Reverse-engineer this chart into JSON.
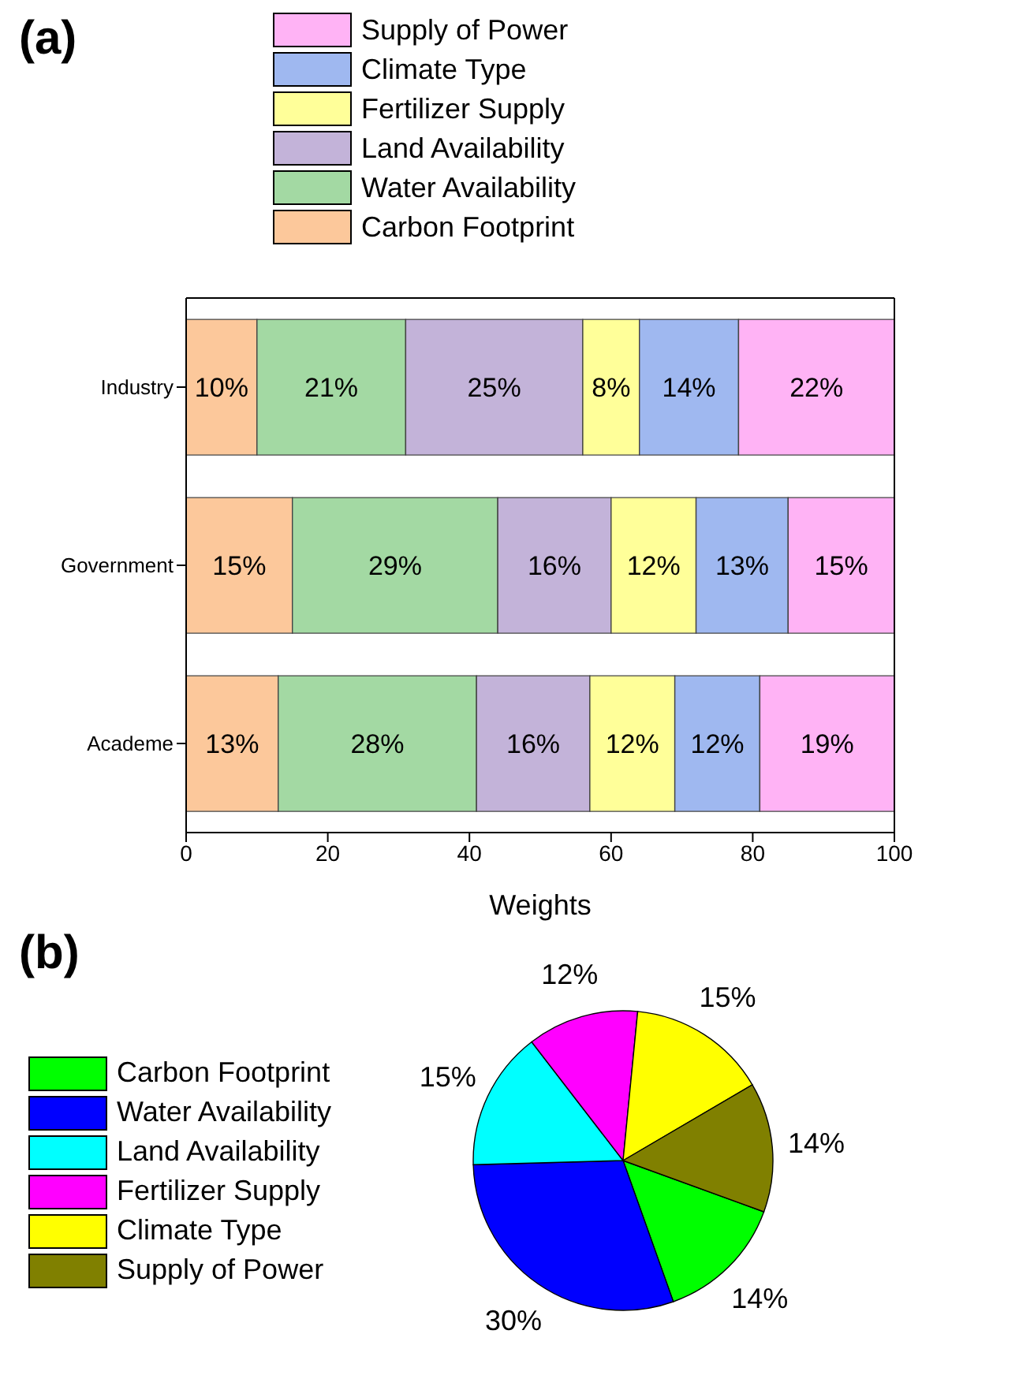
{
  "chart_data": [
    {
      "type": "bar",
      "orientation": "horizontal",
      "stacked": true,
      "annotations": [
        "(a)"
      ],
      "categories": [
        "Industry",
        "Government",
        "Academe"
      ],
      "xlabel": "Weights",
      "xlim": [
        0,
        100
      ],
      "xticks": [
        0,
        20,
        40,
        60,
        80,
        100
      ],
      "legend": "top",
      "series": [
        {
          "name": "Carbon Footprint",
          "color": "#fcc89b",
          "values": [
            10,
            15,
            13
          ],
          "value_labels": [
            "10%",
            "15%",
            "13%"
          ]
        },
        {
          "name": "Water Availability",
          "color": "#a3d9a3",
          "values": [
            21,
            29,
            28
          ],
          "value_labels": [
            "21%",
            "29%",
            "28%"
          ]
        },
        {
          "name": "Land Availability",
          "color": "#c3b3d9",
          "values": [
            25,
            16,
            16
          ],
          "value_labels": [
            "25%",
            "16%",
            "16%"
          ]
        },
        {
          "name": "Fertilizer Supply",
          "color": "#ffff99",
          "values": [
            8,
            12,
            12
          ],
          "value_labels": [
            "8%",
            "12%",
            "12%"
          ]
        },
        {
          "name": "Climate Type",
          "color": "#9fb8f0",
          "values": [
            14,
            13,
            12
          ],
          "value_labels": [
            "14%",
            "13%",
            "12%"
          ]
        },
        {
          "name": "Supply of Power",
          "color": "#ffb3f5",
          "values": [
            22,
            15,
            19
          ],
          "value_labels": [
            "22%",
            "15%",
            "19%"
          ]
        }
      ]
    },
    {
      "type": "pie",
      "annotations": [
        "(b)"
      ],
      "legend": "left",
      "categories": [
        "Carbon Footprint",
        "Water Availability",
        "Land Availability",
        "Fertilizer Supply",
        "Climate Type",
        "Supply of Power"
      ],
      "values": [
        14,
        30,
        15,
        12,
        15,
        14
      ],
      "value_labels": [
        "14%",
        "30%",
        "15%",
        "12%",
        "15%",
        "14%"
      ],
      "colors": [
        "#00ff00",
        "#0000ff",
        "#00ffff",
        "#ff00ff",
        "#ffff00",
        "#808000"
      ]
    }
  ]
}
